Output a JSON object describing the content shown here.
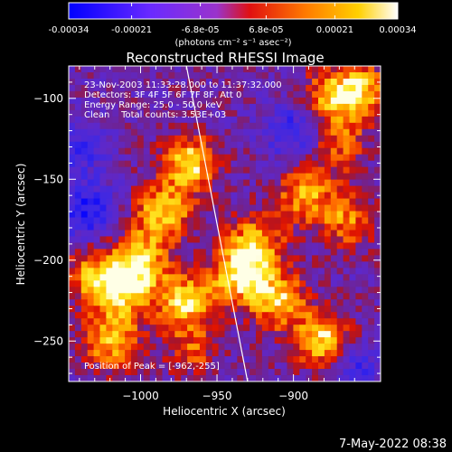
{
  "colorbar": {
    "tick_labels": [
      "-0.00034",
      "-0.00021",
      "-6.8e-05",
      "6.8e-05",
      "0.00021",
      "0.00034"
    ],
    "tick_values": [
      -0.00034,
      -0.00021,
      -6.8e-05,
      6.8e-05,
      0.00021,
      0.00034
    ],
    "range": [
      -0.00034,
      0.00034
    ],
    "unit_label": "(photons cm⁻² s⁻¹ asec⁻²)",
    "colormap": [
      "#0000ff",
      "#5522ff",
      "#7a33e0",
      "#ff2200",
      "#ff8800",
      "#ffd200",
      "#fffde0"
    ]
  },
  "image_title": "Reconstructed RHESSI Image",
  "annotations": {
    "line1": "23-Nov-2003 11:33:28.000 to 11:37:32.000",
    "line2": "Detectors: 3F 4F 5F 6F 7F 8F, Att 0",
    "line3": "Energy Range: 25.0 - 50.0 keV",
    "line4": "Clean    Total counts: 3.53E+03",
    "peak": "Position of Peak = [-962,-255]"
  },
  "footer_date": "7-May-2022 08:38",
  "chart_data": {
    "type": "heatmap",
    "title": "Reconstructed RHESSI Image",
    "xlabel": "Heliocentric X (arcsec)",
    "ylabel": "Heliocentric Y (arcsec)",
    "x_ticks": [
      -1000,
      -950,
      -900
    ],
    "y_ticks": [
      -100,
      -150,
      -200,
      -250
    ],
    "xlim": [
      -1047,
      -843
    ],
    "ylim": [
      -275,
      -80
    ],
    "peak_position": [
      -962,
      -255
    ],
    "colorbar_range": [
      -0.00034,
      0.00034
    ],
    "limb_line": [
      [
        -970,
        -80
      ],
      [
        -930,
        -275
      ]
    ],
    "bright_sources": [
      {
        "x": -968,
        "y": -140,
        "level": 0.9
      },
      {
        "x": -985,
        "y": -170,
        "level": 0.85
      },
      {
        "x": -1000,
        "y": -200,
        "level": 0.85
      },
      {
        "x": -1010,
        "y": -220,
        "level": 0.8
      },
      {
        "x": -1030,
        "y": -210,
        "level": 0.7
      },
      {
        "x": -1020,
        "y": -250,
        "level": 0.8
      },
      {
        "x": -970,
        "y": -225,
        "level": 0.85
      },
      {
        "x": -962,
        "y": -255,
        "level": 1.0
      },
      {
        "x": -935,
        "y": -210,
        "level": 0.85
      },
      {
        "x": -925,
        "y": -190,
        "level": 0.8
      },
      {
        "x": -910,
        "y": -225,
        "level": 0.85
      },
      {
        "x": -880,
        "y": -250,
        "level": 0.95
      },
      {
        "x": -893,
        "y": -160,
        "level": 0.7
      },
      {
        "x": -865,
        "y": -175,
        "level": 0.6
      },
      {
        "x": -875,
        "y": -100,
        "level": 0.75
      },
      {
        "x": -855,
        "y": -95,
        "level": 0.7
      },
      {
        "x": -870,
        "y": -130,
        "level": 0.5
      }
    ],
    "dark_regions": [
      {
        "x": -1035,
        "y": -170,
        "level": -0.7
      },
      {
        "x": -958,
        "y": -255,
        "level": -0.6
      },
      {
        "x": -900,
        "y": -120,
        "level": -0.55
      },
      {
        "x": -860,
        "y": -265,
        "level": -0.5
      },
      {
        "x": -1040,
        "y": -130,
        "level": -0.45
      }
    ]
  }
}
